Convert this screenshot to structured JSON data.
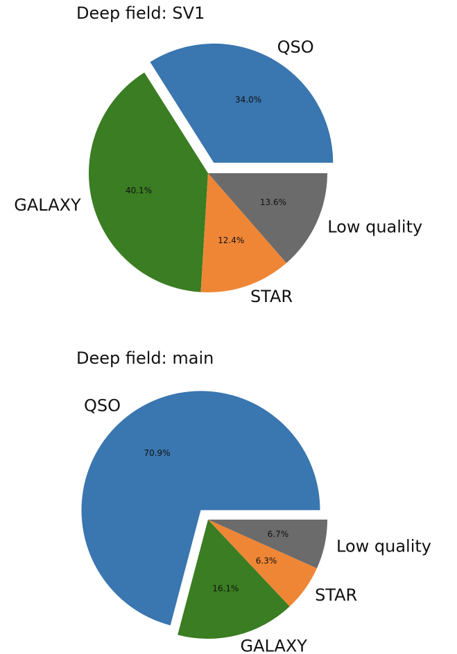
{
  "chart_data": [
    {
      "type": "pie",
      "title": "Deep field: SV1",
      "categories": [
        "QSO",
        "GALAXY",
        "STAR",
        "Low quality"
      ],
      "values": [
        34.0,
        40.1,
        12.4,
        13.6
      ],
      "value_labels": [
        "34.0%",
        "40.1%",
        "12.4%",
        "13.6%"
      ],
      "colors": [
        "#3a76af",
        "#3a7d22",
        "#ef8636",
        "#6b6b6b"
      ],
      "explode": [
        0.1,
        0,
        0,
        0
      ]
    },
    {
      "type": "pie",
      "title": "Deep field: main",
      "categories": [
        "QSO",
        "GALAXY",
        "STAR",
        "Low quality"
      ],
      "values": [
        70.9,
        16.1,
        6.3,
        6.7
      ],
      "value_labels": [
        "70.9%",
        "16.1%",
        "6.3%",
        "6.7%"
      ],
      "colors": [
        "#3a76af",
        "#3a7d22",
        "#ef8636",
        "#6b6b6b"
      ],
      "explode": [
        0.1,
        0,
        0,
        0
      ]
    }
  ]
}
